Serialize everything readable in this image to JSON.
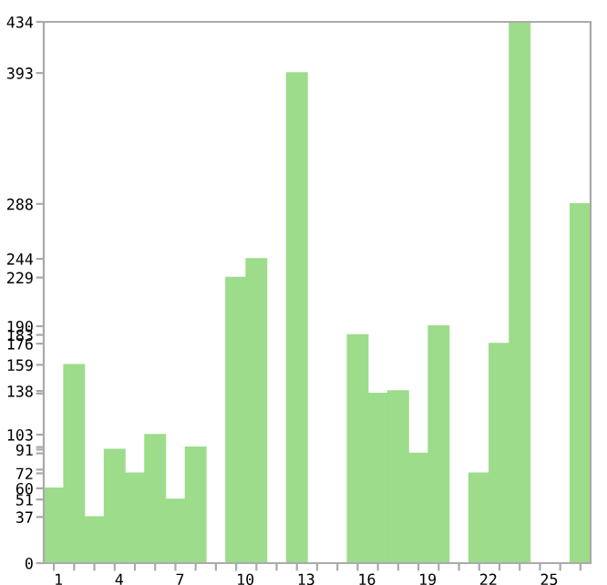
{
  "chart_data": {
    "type": "bar",
    "categories": [
      "1",
      null,
      null,
      "4",
      null,
      null,
      "7",
      null,
      null,
      "10",
      null,
      null,
      "13",
      null,
      null,
      "16",
      null,
      null,
      "19",
      null,
      null,
      "22",
      null,
      null,
      "25",
      null,
      null
    ],
    "values": [
      60,
      159,
      37,
      91,
      72,
      103,
      51,
      93,
      0,
      229,
      244,
      null,
      393,
      0,
      0,
      183,
      136,
      138,
      88,
      190,
      null,
      72,
      176,
      434,
      null,
      0,
      288
    ],
    "color": "#9cdc8a",
    "ylim": [
      0,
      434
    ],
    "yticks": [
      0,
      37,
      51,
      60,
      72,
      {
        "value": 75,
        "label": null
      },
      {
        "value": 88,
        "label": null
      },
      91,
      {
        "value": 93,
        "label": null
      },
      103,
      {
        "value": 136,
        "label": null
      },
      138,
      159,
      176,
      183,
      190,
      229,
      244,
      288,
      393,
      434
    ],
    "grid": false
  }
}
